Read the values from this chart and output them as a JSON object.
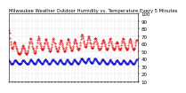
{
  "title": "Milwaukee Weather Outdoor Humidity vs. Temperature Every 5 Minutes",
  "bg_color": "#ffffff",
  "grid_color": "#aaaaaa",
  "red_color": "#dd0000",
  "blue_color": "#0000cc",
  "ylim": [
    10,
    100
  ],
  "xlim": [
    0,
    287
  ],
  "red_y": [
    78,
    74,
    68,
    63,
    59,
    56,
    54,
    53,
    55,
    57,
    60,
    62,
    63,
    62,
    59,
    57,
    55,
    53,
    51,
    49,
    48,
    47,
    46,
    46,
    46,
    47,
    49,
    51,
    53,
    55,
    57,
    58,
    57,
    55,
    53,
    51,
    49,
    47,
    46,
    46,
    47,
    49,
    51,
    54,
    57,
    60,
    63,
    66,
    67,
    66,
    63,
    60,
    57,
    55,
    53,
    51,
    49,
    48,
    48,
    49,
    51,
    54,
    57,
    61,
    65,
    68,
    70,
    68,
    65,
    62,
    59,
    57,
    55,
    53,
    52,
    52,
    53,
    55,
    57,
    60,
    62,
    65,
    66,
    66,
    64,
    62,
    59,
    57,
    55,
    53,
    51,
    50,
    50,
    51,
    53,
    56,
    59,
    63,
    66,
    67,
    65,
    62,
    60,
    57,
    55,
    53,
    51,
    50,
    50,
    51,
    53,
    56,
    59,
    62,
    64,
    65,
    64,
    62,
    59,
    57,
    55,
    53,
    51,
    50,
    50,
    51,
    53,
    56,
    59,
    62,
    65,
    66,
    66,
    64,
    61,
    58,
    56,
    54,
    52,
    51,
    51,
    52,
    54,
    57,
    60,
    63,
    65,
    66,
    64,
    62,
    60,
    57,
    55,
    53,
    52,
    52,
    53,
    55,
    58,
    62,
    66,
    70,
    72,
    72,
    70,
    67,
    64,
    61,
    59,
    57,
    56,
    56,
    57,
    59,
    62,
    65,
    68,
    70,
    70,
    68,
    65,
    62,
    60,
    57,
    55,
    54,
    54,
    55,
    57,
    60,
    63,
    66,
    68,
    68,
    66,
    64,
    62,
    59,
    57,
    55,
    53,
    52,
    52,
    53,
    55,
    57,
    60,
    62,
    64,
    65,
    65,
    63,
    61,
    59,
    57,
    55,
    53,
    52,
    52,
    53,
    55,
    58,
    61,
    64,
    66,
    67,
    66,
    63,
    60,
    58,
    56,
    54,
    53,
    52,
    52,
    53,
    55,
    57,
    60,
    62,
    63,
    62,
    60,
    57,
    55,
    53,
    52,
    52,
    53,
    55,
    58,
    61,
    64,
    66,
    67,
    66,
    63,
    60,
    58,
    56,
    54,
    53,
    52,
    52,
    53,
    55,
    58,
    61,
    64,
    66,
    66,
    64,
    62,
    59,
    57,
    55,
    53,
    52,
    52,
    53,
    55,
    58,
    61,
    64,
    65,
    65
  ],
  "blue_y": [
    38,
    37,
    36,
    35,
    34,
    33,
    33,
    33,
    34,
    35,
    36,
    37,
    38,
    38,
    38,
    38,
    37,
    36,
    36,
    35,
    35,
    34,
    34,
    33,
    33,
    33,
    34,
    35,
    36,
    37,
    38,
    38,
    38,
    38,
    37,
    36,
    36,
    35,
    35,
    34,
    34,
    33,
    33,
    34,
    35,
    36,
    37,
    38,
    39,
    39,
    38,
    37,
    37,
    36,
    35,
    35,
    34,
    33,
    33,
    34,
    35,
    36,
    37,
    38,
    39,
    39,
    39,
    38,
    37,
    37,
    36,
    35,
    35,
    34,
    34,
    34,
    35,
    36,
    37,
    38,
    38,
    39,
    39,
    38,
    37,
    37,
    36,
    35,
    34,
    34,
    33,
    33,
    34,
    35,
    36,
    37,
    38,
    38,
    39,
    39,
    38,
    37,
    37,
    36,
    35,
    35,
    34,
    34,
    34,
    35,
    36,
    37,
    38,
    38,
    39,
    38,
    37,
    36,
    35,
    35,
    34,
    34,
    33,
    33,
    34,
    35,
    36,
    37,
    38,
    39,
    39,
    38,
    37,
    36,
    36,
    35,
    34,
    34,
    33,
    33,
    34,
    35,
    36,
    37,
    38,
    39,
    39,
    38,
    37,
    37,
    36,
    35,
    35,
    34,
    34,
    34,
    35,
    36,
    37,
    38,
    39,
    40,
    40,
    40,
    39,
    38,
    37,
    37,
    36,
    36,
    35,
    35,
    36,
    37,
    38,
    39,
    40,
    40,
    40,
    39,
    37,
    37,
    36,
    35,
    35,
    35,
    35,
    36,
    37,
    38,
    39,
    40,
    40,
    40,
    39,
    38,
    37,
    37,
    36,
    35,
    35,
    34,
    34,
    35,
    36,
    37,
    38,
    39,
    39,
    39,
    38,
    37,
    37,
    36,
    35,
    35,
    34,
    34,
    33,
    33,
    34,
    35,
    36,
    37,
    38,
    39,
    38,
    37,
    36,
    36,
    35,
    34,
    34,
    33,
    33,
    34,
    35,
    36,
    37,
    38,
    38,
    38,
    37,
    36,
    36,
    35,
    34,
    34,
    33,
    33,
    34,
    35,
    36,
    37,
    38,
    38,
    38,
    37,
    36,
    36,
    35,
    34,
    34,
    33,
    33,
    34,
    35,
    36,
    37,
    38,
    38,
    37,
    36,
    36,
    35,
    34,
    34,
    33,
    33,
    34,
    35,
    36,
    37,
    38,
    39,
    39
  ],
  "ytick_values": [
    10,
    20,
    30,
    40,
    50,
    60,
    70,
    80,
    90,
    100
  ],
  "ytick_labels": [
    "10",
    "20",
    "30",
    "40",
    "50",
    "60",
    "70",
    "80",
    "90",
    "100"
  ],
  "tick_fontsize": 4,
  "title_fontsize": 3.8,
  "markersize": 0.8
}
